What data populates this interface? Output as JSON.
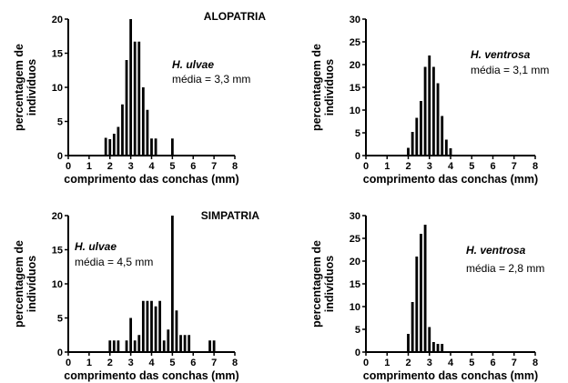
{
  "chart_data": [
    {
      "type": "bar",
      "title": "ALOPATRIA",
      "species": "H. ulvae",
      "mean_label": "média = 3,3 mm",
      "xlabel": "comprimento das conchas (mm)",
      "ylabel": [
        "percentagem de",
        "indivíduos"
      ],
      "xlim": [
        0,
        8
      ],
      "ylim": [
        0,
        20
      ],
      "xticks": [
        "0",
        "1",
        "2",
        "3",
        "4",
        "5",
        "6",
        "7",
        "8"
      ],
      "yticks": [
        "0",
        "5",
        "10",
        "15",
        "20"
      ],
      "bin_width": 0.2,
      "x": [
        1.8,
        2.0,
        2.2,
        2.4,
        2.6,
        2.8,
        3.0,
        3.2,
        3.4,
        3.6,
        3.8,
        4.0,
        4.2,
        5.0
      ],
      "values": [
        2.6,
        2.4,
        3.2,
        4.2,
        7.5,
        14.0,
        20.0,
        16.7,
        16.7,
        10.0,
        6.7,
        2.5,
        2.5,
        2.5
      ]
    },
    {
      "type": "bar",
      "title": "",
      "species": "H. ventrosa",
      "mean_label": "média = 3,1 mm",
      "xlabel": "comprimento das conchas (mm)",
      "ylabel": [
        "percentagem de",
        "indivíduos"
      ],
      "xlim": [
        0,
        8
      ],
      "ylim": [
        0,
        30
      ],
      "xticks": [
        "0",
        "1",
        "2",
        "3",
        "4",
        "5",
        "6",
        "7",
        "8"
      ],
      "yticks": [
        "0",
        "5",
        "10",
        "15",
        "20",
        "25",
        "30"
      ],
      "bin_width": 0.2,
      "x": [
        2.0,
        2.2,
        2.4,
        2.6,
        2.8,
        3.0,
        3.2,
        3.4,
        3.6,
        3.8,
        4.0
      ],
      "values": [
        1.7,
        5.2,
        8.3,
        12.0,
        19.5,
        22.0,
        19.5,
        15.9,
        8.7,
        3.5,
        1.6
      ]
    },
    {
      "type": "bar",
      "title": "SIMPATRIA",
      "species": "H. ulvae",
      "mean_label": "média = 4,5 mm",
      "xlabel": "comprimento das conchas (mm)",
      "ylabel": [
        "percentagem de",
        "indivíduos"
      ],
      "xlim": [
        0,
        8
      ],
      "ylim": [
        0,
        20
      ],
      "xticks": [
        "0",
        "1",
        "2",
        "3",
        "4",
        "5",
        "6",
        "7",
        "8"
      ],
      "yticks": [
        "0",
        "5",
        "10",
        "15",
        "20"
      ],
      "bin_width": 0.2,
      "x": [
        2.0,
        2.2,
        2.4,
        2.8,
        3.0,
        3.2,
        3.4,
        3.6,
        3.8,
        4.0,
        4.2,
        4.4,
        4.6,
        4.8,
        5.0,
        5.2,
        5.4,
        5.6,
        5.8,
        6.8,
        7.0
      ],
      "values": [
        1.7,
        1.7,
        1.7,
        1.7,
        5.0,
        1.7,
        2.5,
        7.5,
        7.5,
        7.5,
        6.7,
        7.5,
        1.7,
        3.3,
        20.0,
        6.1,
        2.5,
        2.5,
        2.5,
        1.7,
        1.7
      ]
    },
    {
      "type": "bar",
      "title": "",
      "species": "H. ventrosa",
      "mean_label": "média = 2,8 mm",
      "xlabel": "comprimento das conchas (mm)",
      "ylabel": [
        "percentagem de",
        "indivíduos"
      ],
      "xlim": [
        0,
        8
      ],
      "ylim": [
        0,
        30
      ],
      "xticks": [
        "0",
        "1",
        "2",
        "3",
        "4",
        "5",
        "6",
        "7",
        "8"
      ],
      "yticks": [
        "0",
        "5",
        "10",
        "15",
        "20",
        "25",
        "30"
      ],
      "bin_width": 0.2,
      "x": [
        2.0,
        2.2,
        2.4,
        2.6,
        2.8,
        3.0,
        3.2,
        3.4,
        3.6
      ],
      "values": [
        4.0,
        11.0,
        21.0,
        26.0,
        28.0,
        5.5,
        2.2,
        1.8,
        1.8
      ]
    }
  ]
}
